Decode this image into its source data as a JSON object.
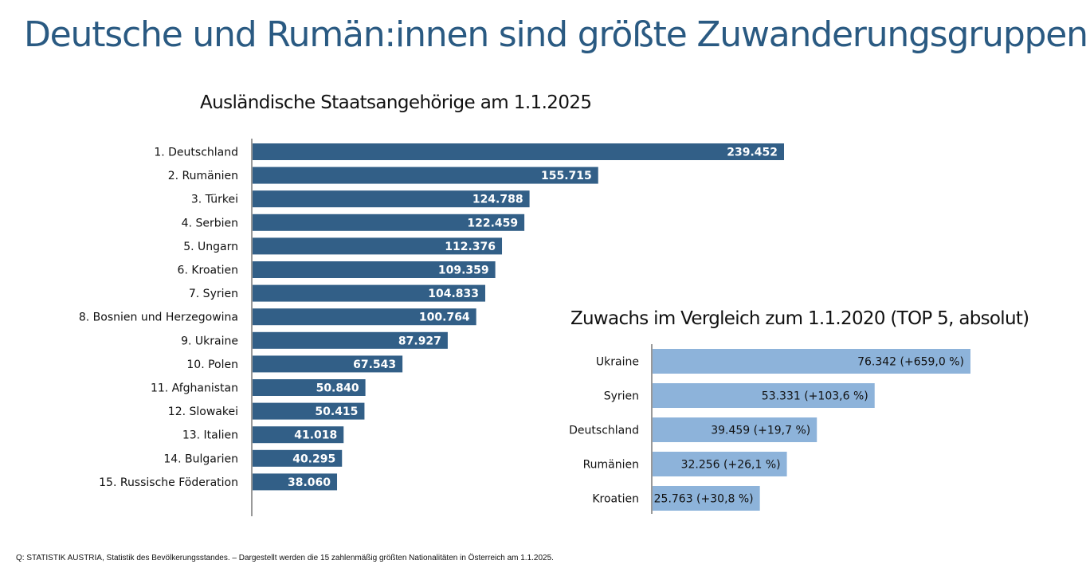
{
  "header": {
    "title": "Deutsche und Rumän:innen sind größte Zuwanderungsgruppen"
  },
  "footer": {
    "source": "Q: STATISTIK AUSTRIA, Statistik des Bevölkerungsstandes. – Dargestellt werden die 15 zahlenmäßig größten Nationalitäten in Österreich am 1.1.2025."
  },
  "colors": {
    "title": "#2a5a82",
    "bar_main": "#325f87",
    "bar_growth": "#8db3da",
    "axis": "#333333"
  },
  "chart_data": [
    {
      "type": "bar",
      "orientation": "horizontal",
      "title": "Ausländische Staatsangehörige am 1.1.2025",
      "categories": [
        "1. Deutschland",
        "2. Rumänien",
        "3. Türkei",
        "4. Serbien",
        "5. Ungarn",
        "6. Kroatien",
        "7. Syrien",
        "8. Bosnien und Herzegowina",
        "9. Ukraine",
        "10. Polen",
        "11. Afghanistan",
        "12. Slowakei",
        "13. Italien",
        "14. Bulgarien",
        "15. Russische Föderation"
      ],
      "values": [
        239452,
        155715,
        124788,
        122459,
        112376,
        109359,
        104833,
        100764,
        87927,
        67543,
        50840,
        50415,
        41018,
        40295,
        38060
      ],
      "value_labels": [
        "239.452",
        "155.715",
        "124.788",
        "122.459",
        "112.376",
        "109.359",
        "104.833",
        "100.764",
        "87.927",
        "67.543",
        "50.840",
        "50.415",
        "41.018",
        "40.295",
        "38.060"
      ],
      "xlim": [
        0,
        250000
      ],
      "grid": false,
      "legend": "none"
    },
    {
      "type": "bar",
      "orientation": "horizontal",
      "title": "Zuwachs im Vergleich zum 1.1.2020 (TOP 5, absolut)",
      "categories": [
        "Ukraine",
        "Syrien",
        "Deutschland",
        "Rumänien",
        "Kroatien"
      ],
      "values": [
        76342,
        53331,
        39459,
        32256,
        25763
      ],
      "percent_change": [
        659.0,
        103.6,
        19.7,
        26.1,
        30.8
      ],
      "value_labels": [
        "76.342 (+659,0 %)",
        "53.331 (+103,6 %)",
        "39.459 (+19,7 %)",
        "32.256 (+26,1 %)",
        "25.763 (+30,8 %)"
      ],
      "xlim": [
        0,
        80000
      ],
      "grid": false,
      "legend": "none"
    }
  ]
}
